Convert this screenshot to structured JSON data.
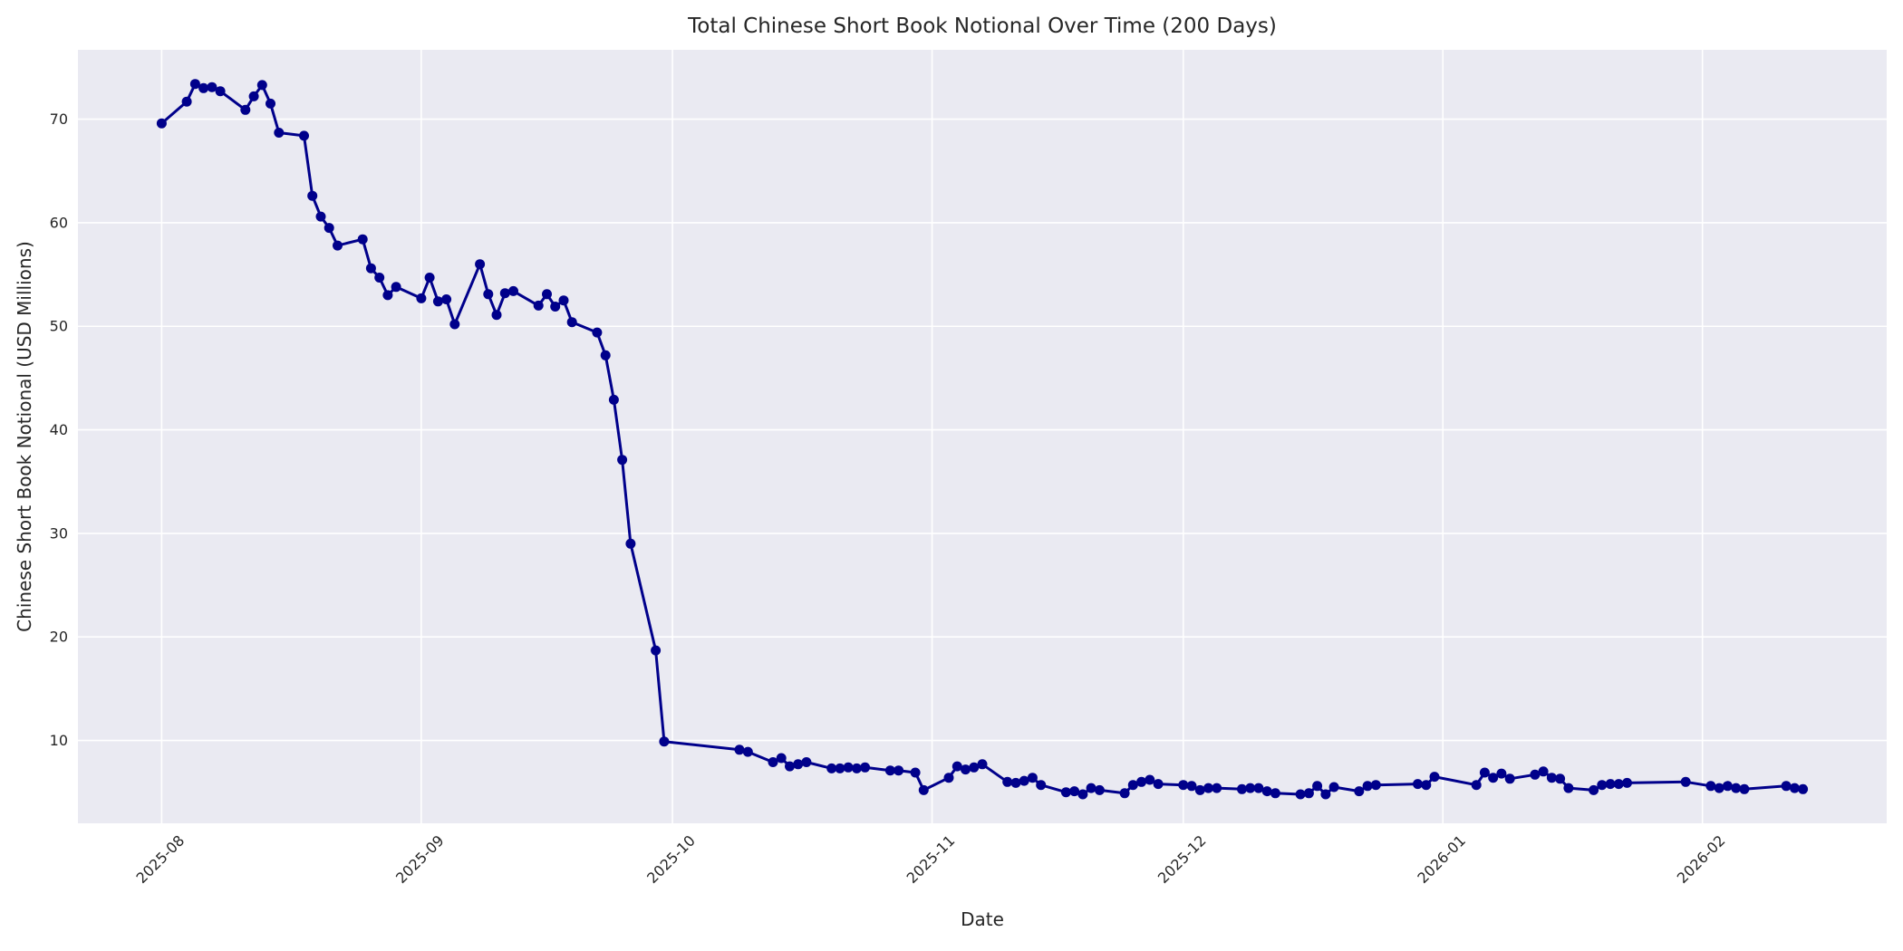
{
  "figure": {
    "background": "#ffffff",
    "text_color": "#262626"
  },
  "chart_data": {
    "type": "line",
    "title": "Total Chinese Short Book Notional Over Time (200 Days)",
    "xlabel": "Date",
    "ylabel": "Chinese Short Book Notional (USD Millions)",
    "legend": null,
    "grid": true,
    "marker": "circle",
    "colors": {
      "line": "#00008B",
      "marker": "#00008B",
      "plot_background": "#EAEAF2",
      "grid": "#FFFFFF",
      "text": "#262626",
      "figure_background": "#FFFFFF"
    },
    "ylim": [
      2.0,
      76.7
    ],
    "xlim": [
      "2025-07-22",
      "2026-02-23"
    ],
    "yticks": [
      10,
      20,
      30,
      40,
      50,
      60,
      70
    ],
    "xticks": [
      {
        "date": "2025-08-01",
        "label": "2025-08"
      },
      {
        "date": "2025-09-01",
        "label": "2025-09"
      },
      {
        "date": "2025-10-01",
        "label": "2025-10"
      },
      {
        "date": "2025-11-01",
        "label": "2025-11"
      },
      {
        "date": "2025-12-01",
        "label": "2025-12"
      },
      {
        "date": "2026-01-01",
        "label": "2026-01"
      },
      {
        "date": "2026-02-01",
        "label": "2026-02"
      }
    ],
    "x": [
      "2025-08-01",
      "2025-08-04",
      "2025-08-05",
      "2025-08-06",
      "2025-08-07",
      "2025-08-08",
      "2025-08-11",
      "2025-08-12",
      "2025-08-13",
      "2025-08-14",
      "2025-08-15",
      "2025-08-18",
      "2025-08-19",
      "2025-08-20",
      "2025-08-21",
      "2025-08-22",
      "2025-08-25",
      "2025-08-26",
      "2025-08-27",
      "2025-08-28",
      "2025-08-29",
      "2025-09-01",
      "2025-09-02",
      "2025-09-03",
      "2025-09-04",
      "2025-09-05",
      "2025-09-08",
      "2025-09-09",
      "2025-09-10",
      "2025-09-11",
      "2025-09-12",
      "2025-09-15",
      "2025-09-16",
      "2025-09-17",
      "2025-09-18",
      "2025-09-19",
      "2025-09-22",
      "2025-09-23",
      "2025-09-24",
      "2025-09-25",
      "2025-09-26",
      "2025-09-29",
      "2025-09-30",
      "2025-10-09",
      "2025-10-10",
      "2025-10-13",
      "2025-10-14",
      "2025-10-15",
      "2025-10-16",
      "2025-10-17",
      "2025-10-20",
      "2025-10-21",
      "2025-10-22",
      "2025-10-23",
      "2025-10-24",
      "2025-10-27",
      "2025-10-28",
      "2025-10-30",
      "2025-10-31",
      "2025-11-03",
      "2025-11-04",
      "2025-11-05",
      "2025-11-06",
      "2025-11-07",
      "2025-11-10",
      "2025-11-11",
      "2025-11-12",
      "2025-11-13",
      "2025-11-14",
      "2025-11-17",
      "2025-11-18",
      "2025-11-19",
      "2025-11-20",
      "2025-11-21",
      "2025-11-24",
      "2025-11-25",
      "2025-11-26",
      "2025-11-27",
      "2025-11-28",
      "2025-12-01",
      "2025-12-02",
      "2025-12-03",
      "2025-12-04",
      "2025-12-05",
      "2025-12-08",
      "2025-12-09",
      "2025-12-10",
      "2025-12-11",
      "2025-12-12",
      "2025-12-15",
      "2025-12-16",
      "2025-12-17",
      "2025-12-18",
      "2025-12-19",
      "2025-12-22",
      "2025-12-23",
      "2025-12-24",
      "2025-12-29",
      "2025-12-30",
      "2025-12-31",
      "2026-01-05",
      "2026-01-06",
      "2026-01-07",
      "2026-01-08",
      "2026-01-09",
      "2026-01-12",
      "2026-01-13",
      "2026-01-14",
      "2026-01-15",
      "2026-01-16",
      "2026-01-19",
      "2026-01-20",
      "2026-01-21",
      "2026-01-22",
      "2026-01-23",
      "2026-01-30",
      "2026-02-02",
      "2026-02-03",
      "2026-02-04",
      "2026-02-05",
      "2026-02-06",
      "2026-02-11",
      "2026-02-12",
      "2026-02-13"
    ],
    "values": [
      69.6,
      71.7,
      73.4,
      73.0,
      73.1,
      72.7,
      70.9,
      72.2,
      73.3,
      71.5,
      68.7,
      68.4,
      62.6,
      60.6,
      59.5,
      57.8,
      58.4,
      55.6,
      54.7,
      53.0,
      53.8,
      52.7,
      54.7,
      52.4,
      52.6,
      50.2,
      56.0,
      53.1,
      51.1,
      53.2,
      53.4,
      52.0,
      53.1,
      51.9,
      52.5,
      50.4,
      49.4,
      47.2,
      42.9,
      37.1,
      29.0,
      18.7,
      9.9,
      9.1,
      8.9,
      7.9,
      8.3,
      7.5,
      7.7,
      7.9,
      7.3,
      7.3,
      7.4,
      7.3,
      7.4,
      7.1,
      7.1,
      6.9,
      5.2,
      6.4,
      7.5,
      7.2,
      7.4,
      7.7,
      6.0,
      5.9,
      6.1,
      6.4,
      5.7,
      5.0,
      5.1,
      4.8,
      5.4,
      5.2,
      4.9,
      5.7,
      6.0,
      6.2,
      5.8,
      5.7,
      5.6,
      5.2,
      5.4,
      5.4,
      5.3,
      5.4,
      5.4,
      5.1,
      4.9,
      4.8,
      4.9,
      5.6,
      4.8,
      5.5,
      5.1,
      5.6,
      5.7,
      5.8,
      5.7,
      6.5,
      5.7,
      6.9,
      6.4,
      6.8,
      6.3,
      6.7,
      7.0,
      6.4,
      6.3,
      5.4,
      5.2,
      5.7,
      5.8,
      5.8,
      5.9,
      6.0,
      5.6,
      5.4,
      5.6,
      5.4,
      5.3,
      5.6,
      5.4,
      5.3
    ]
  }
}
